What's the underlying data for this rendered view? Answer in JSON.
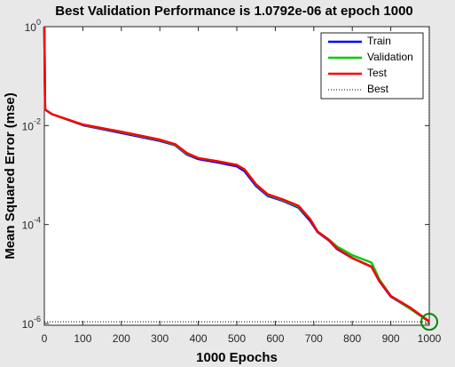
{
  "chart_data": {
    "type": "line",
    "title": "Best Validation Performance is 1.0792e-06 at epoch 1000",
    "x_label": "1000 Epochs",
    "y_label": "Mean Squared Error  (mse)",
    "yscale": "log",
    "xlim": [
      0,
      1000
    ],
    "ylim": [
      9.2e-07,
      1
    ],
    "xticks": [
      0,
      100,
      200,
      300,
      400,
      500,
      600,
      700,
      800,
      900,
      1000
    ],
    "yticks": [
      {
        "value": 1,
        "label": "10^0"
      },
      {
        "value": 0.01,
        "label": "10^-2"
      },
      {
        "value": 0.0001,
        "label": "10^-4"
      },
      {
        "value": 1e-06,
        "label": "10^-6"
      }
    ],
    "legend": "upper right",
    "x": [
      0,
      2,
      20,
      100,
      200,
      300,
      340,
      370,
      400,
      450,
      500,
      520,
      550,
      580,
      620,
      660,
      690,
      710,
      740,
      760,
      800,
      850,
      870,
      900,
      950,
      1000
    ],
    "series": [
      {
        "name": "Train",
        "color": "#0000ff",
        "values": [
          1,
          0.021,
          0.017,
          0.0102,
          0.0071,
          0.0049,
          0.004,
          0.0026,
          0.0021,
          0.0018,
          0.0015,
          0.0012,
          0.0006,
          0.00038,
          0.0003,
          0.00022,
          0.00012,
          7e-05,
          4.7e-05,
          3.2e-05,
          2.1e-05,
          1.4e-05,
          7.2e-06,
          3.5e-06,
          2e-06,
          1.08e-06
        ]
      },
      {
        "name": "Validation",
        "color": "#00cc00",
        "values": [
          1,
          0.021,
          0.017,
          0.0104,
          0.0074,
          0.0051,
          0.0041,
          0.0027,
          0.0022,
          0.0019,
          0.0016,
          0.0013,
          0.00064,
          0.0004,
          0.00031,
          0.00023,
          0.00013,
          7.2e-05,
          4.9e-05,
          3.6e-05,
          2.4e-05,
          1.7e-05,
          7.8e-06,
          3.6e-06,
          2e-06,
          1.0792e-06
        ]
      },
      {
        "name": "Test",
        "color": "#ff0000",
        "values": [
          1,
          0.021,
          0.017,
          0.0105,
          0.0075,
          0.0052,
          0.0042,
          0.0028,
          0.0022,
          0.0019,
          0.0016,
          0.0013,
          0.00065,
          0.00041,
          0.00032,
          0.00024,
          0.00013,
          7.2e-05,
          4.8e-05,
          3.3e-05,
          2.1e-05,
          1.4e-05,
          7.3e-06,
          3.6e-06,
          2.1e-06,
          1.1e-06
        ]
      }
    ],
    "best": {
      "name": "Best",
      "epoch": 1000,
      "value": 1.0792e-06,
      "color": "#008800"
    }
  }
}
